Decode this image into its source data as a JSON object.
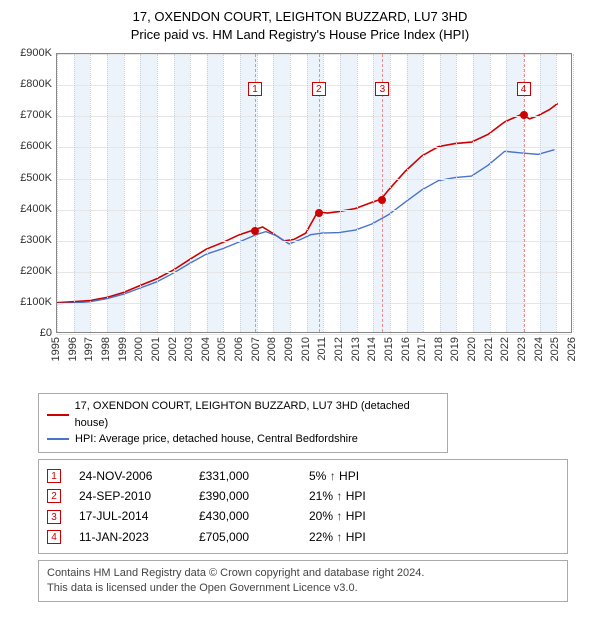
{
  "title_line1": "17, OXENDON COURT, LEIGHTON BUZZARD, LU7 3HD",
  "title_line2": "Price paid vs. HM Land Registry's House Price Index (HPI)",
  "chart": {
    "type": "line",
    "background_color": "#ffffff",
    "grid_color": "#e6e6e6",
    "vgrid_color": "#d0d0d0",
    "border_color": "#888888",
    "band_color": "#eaf2fb",
    "x": {
      "min": 1995,
      "max": 2026,
      "tick_step": 1,
      "label_fontsize": 11
    },
    "y": {
      "min": 0,
      "max": 900000,
      "tick_step": 100000,
      "prefix": "£",
      "suffix": "K",
      "divide": 1000,
      "label_fontsize": 11
    },
    "series": [
      {
        "name": "price_paid",
        "label": "17, OXENDON COURT, LEIGHTON BUZZARD, LU7 3HD (detached house)",
        "color": "#cc0000",
        "line_width": 1.6,
        "points": [
          [
            1995.0,
            95000
          ],
          [
            1996.0,
            98000
          ],
          [
            1997.0,
            102000
          ],
          [
            1998.0,
            112000
          ],
          [
            1999.0,
            128000
          ],
          [
            2000.0,
            150000
          ],
          [
            2001.0,
            172000
          ],
          [
            2002.0,
            200000
          ],
          [
            2003.0,
            235000
          ],
          [
            2004.0,
            268000
          ],
          [
            2005.0,
            290000
          ],
          [
            2006.0,
            315000
          ],
          [
            2006.9,
            331000
          ],
          [
            2007.4,
            340000
          ],
          [
            2008.0,
            320000
          ],
          [
            2008.7,
            295000
          ],
          [
            2009.3,
            300000
          ],
          [
            2010.0,
            320000
          ],
          [
            2010.73,
            390000
          ],
          [
            2011.3,
            385000
          ],
          [
            2012.0,
            390000
          ],
          [
            2013.0,
            400000
          ],
          [
            2014.0,
            420000
          ],
          [
            2014.55,
            430000
          ],
          [
            2015.0,
            460000
          ],
          [
            2016.0,
            520000
          ],
          [
            2017.0,
            570000
          ],
          [
            2018.0,
            600000
          ],
          [
            2019.0,
            610000
          ],
          [
            2020.0,
            615000
          ],
          [
            2021.0,
            640000
          ],
          [
            2022.0,
            680000
          ],
          [
            2023.03,
            705000
          ],
          [
            2023.5,
            690000
          ],
          [
            2024.0,
            700000
          ],
          [
            2024.7,
            720000
          ],
          [
            2025.2,
            740000
          ]
        ]
      },
      {
        "name": "hpi",
        "label": "HPI: Average price, detached house, Central Bedfordshire",
        "color": "#4a74c9",
        "line_width": 1.4,
        "points": [
          [
            1995.0,
            92000
          ],
          [
            1996.0,
            94000
          ],
          [
            1997.0,
            98000
          ],
          [
            1998.0,
            108000
          ],
          [
            1999.0,
            122000
          ],
          [
            2000.0,
            142000
          ],
          [
            2001.0,
            162000
          ],
          [
            2002.0,
            190000
          ],
          [
            2003.0,
            222000
          ],
          [
            2004.0,
            252000
          ],
          [
            2005.0,
            270000
          ],
          [
            2006.0,
            292000
          ],
          [
            2007.0,
            315000
          ],
          [
            2007.6,
            325000
          ],
          [
            2008.3,
            310000
          ],
          [
            2009.0,
            285000
          ],
          [
            2009.7,
            300000
          ],
          [
            2010.3,
            315000
          ],
          [
            2011.0,
            320000
          ],
          [
            2012.0,
            322000
          ],
          [
            2013.0,
            330000
          ],
          [
            2014.0,
            350000
          ],
          [
            2015.0,
            380000
          ],
          [
            2016.0,
            420000
          ],
          [
            2017.0,
            460000
          ],
          [
            2018.0,
            490000
          ],
          [
            2019.0,
            500000
          ],
          [
            2020.0,
            505000
          ],
          [
            2021.0,
            540000
          ],
          [
            2022.0,
            585000
          ],
          [
            2023.0,
            580000
          ],
          [
            2024.0,
            575000
          ],
          [
            2025.0,
            590000
          ]
        ]
      }
    ],
    "sale_markers": {
      "color": "#cc0000",
      "radius": 4,
      "points": [
        {
          "n": "1",
          "x": 2006.9,
          "y": 331000
        },
        {
          "n": "2",
          "x": 2010.73,
          "y": 390000
        },
        {
          "n": "3",
          "x": 2014.55,
          "y": 430000
        },
        {
          "n": "4",
          "x": 2023.03,
          "y": 705000
        }
      ],
      "label_y": 810000,
      "label_box_border": "#cc0000",
      "label_box_text": "#cc0000",
      "dash_color": "#e89090"
    }
  },
  "legend": {
    "border_color": "#aaaaaa",
    "fontsize": 11
  },
  "events_table": {
    "border_color": "#aaaaaa",
    "fontsize": 12,
    "arrow": "↑",
    "hpi_suffix": "HPI",
    "rows": [
      {
        "n": "1",
        "date": "24-NOV-2006",
        "price": "£331,000",
        "pct": "5%"
      },
      {
        "n": "2",
        "date": "24-SEP-2010",
        "price": "£390,000",
        "pct": "21%"
      },
      {
        "n": "3",
        "date": "17-JUL-2014",
        "price": "£430,000",
        "pct": "20%"
      },
      {
        "n": "4",
        "date": "11-JAN-2023",
        "price": "£705,000",
        "pct": "22%"
      }
    ]
  },
  "footer_line1": "Contains HM Land Registry data © Crown copyright and database right 2024.",
  "footer_line2": "This data is licensed under the Open Government Licence v3.0."
}
